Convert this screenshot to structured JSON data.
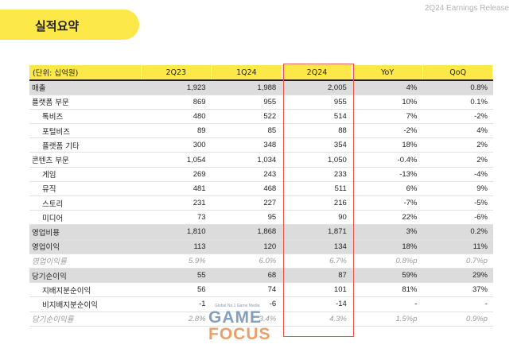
{
  "header": {
    "title": "실적요약",
    "release": "2Q24 Earnings Release"
  },
  "table": {
    "columns": [
      "(단위: 십억원)",
      "2Q23",
      "1Q24",
      "2Q24",
      "YoY",
      "QoQ"
    ],
    "rows": [
      {
        "label": "매출",
        "values": [
          "1,923",
          "1,988",
          "2,005",
          "4%",
          "0.8%"
        ],
        "style": "gray"
      },
      {
        "label": "플랫폼 부문",
        "values": [
          "869",
          "955",
          "955",
          "10%",
          "0.1%"
        ],
        "style": ""
      },
      {
        "label": "톡비즈",
        "values": [
          "480",
          "522",
          "514",
          "7%",
          "-2%"
        ],
        "style": "sub"
      },
      {
        "label": "포털비즈",
        "values": [
          "89",
          "85",
          "88",
          "-2%",
          "4%"
        ],
        "style": "sub"
      },
      {
        "label": "플랫폼 기타",
        "values": [
          "300",
          "348",
          "354",
          "18%",
          "2%"
        ],
        "style": "sub"
      },
      {
        "label": "콘텐츠 부문",
        "values": [
          "1,054",
          "1,034",
          "1,050",
          "-0.4%",
          "2%"
        ],
        "style": ""
      },
      {
        "label": "게임",
        "values": [
          "269",
          "243",
          "233",
          "-13%",
          "-4%"
        ],
        "style": "sub"
      },
      {
        "label": "뮤직",
        "values": [
          "481",
          "468",
          "511",
          "6%",
          "9%"
        ],
        "style": "sub"
      },
      {
        "label": "스토리",
        "values": [
          "231",
          "227",
          "216",
          "-7%",
          "-5%"
        ],
        "style": "sub"
      },
      {
        "label": "미디어",
        "values": [
          "73",
          "95",
          "90",
          "22%",
          "-6%"
        ],
        "style": "sub"
      },
      {
        "label": "영업비용",
        "values": [
          "1,810",
          "1,868",
          "1,871",
          "3%",
          "0.2%"
        ],
        "style": "gray"
      },
      {
        "label": "영업이익",
        "values": [
          "113",
          "120",
          "134",
          "18%",
          "11%"
        ],
        "style": "gray"
      },
      {
        "label": "영업이익률",
        "values": [
          "5.9%",
          "6.0%",
          "6.7%",
          "0.8%p",
          "0.7%p"
        ],
        "style": "italic"
      },
      {
        "label": "당기순이익",
        "values": [
          "55",
          "68",
          "87",
          "59%",
          "29%"
        ],
        "style": "gray"
      },
      {
        "label": "지배지분순이익",
        "values": [
          "56",
          "74",
          "101",
          "81%",
          "37%"
        ],
        "style": "sub"
      },
      {
        "label": "비지배지분순이익",
        "values": [
          "-1",
          "-6",
          "-14",
          "-",
          "-"
        ],
        "style": "sub"
      },
      {
        "label": "당기순이익률",
        "values": [
          "2.8%",
          "3.4%",
          "4.3%",
          "1.5%p",
          "0.9%p"
        ],
        "style": "italic"
      }
    ]
  },
  "watermark": {
    "tagline": "Global No.1 Game Media",
    "word1": "GAME",
    "word2": "FOCUS"
  },
  "colors": {
    "accent": "#fde84a",
    "highlight_border": "#e8534a",
    "gray_row": "#dcdcdc"
  }
}
